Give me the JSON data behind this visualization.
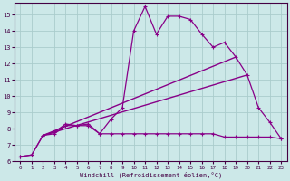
{
  "bg_color": "#cce8e8",
  "grid_color": "#aacccc",
  "line_color": "#880088",
  "xlabel": "Windchill (Refroidissement éolien,°C)",
  "xlim": [
    -0.5,
    23.5
  ],
  "ylim": [
    6,
    15.7
  ],
  "yticks": [
    6,
    7,
    8,
    9,
    10,
    11,
    12,
    13,
    14,
    15
  ],
  "xticks": [
    0,
    1,
    2,
    3,
    4,
    5,
    6,
    7,
    8,
    9,
    10,
    11,
    12,
    13,
    14,
    15,
    16,
    17,
    18,
    19,
    20,
    21,
    22,
    23
  ],
  "line1_x": [
    0,
    1,
    2,
    3,
    4,
    5,
    6,
    7,
    8,
    9,
    10,
    11,
    12,
    13,
    14,
    15,
    16,
    17,
    18,
    19,
    20,
    21,
    22,
    23
  ],
  "line1_y": [
    6.3,
    6.4,
    7.6,
    7.8,
    8.3,
    8.2,
    8.3,
    7.7,
    8.6,
    9.3,
    14.0,
    15.5,
    13.8,
    14.9,
    14.9,
    14.7,
    13.8,
    13.0,
    13.3,
    12.4,
    11.3,
    9.3,
    8.4,
    7.4
  ],
  "line2_x": [
    0,
    1,
    2,
    3,
    4,
    5,
    6,
    7,
    8,
    9,
    10,
    11,
    12,
    13,
    14,
    15,
    16,
    17,
    18,
    19,
    20,
    21,
    22,
    23
  ],
  "line2_y": [
    6.3,
    6.4,
    7.6,
    7.7,
    8.2,
    8.2,
    8.2,
    7.7,
    7.7,
    7.7,
    7.7,
    7.7,
    7.7,
    7.7,
    7.7,
    7.7,
    7.7,
    7.7,
    7.5,
    7.5,
    7.5,
    7.5,
    7.5,
    7.4
  ],
  "line3_x": [
    2,
    19
  ],
  "line3_y": [
    7.6,
    12.4
  ],
  "line4_x": [
    2,
    20
  ],
  "line4_y": [
    7.6,
    11.3
  ]
}
